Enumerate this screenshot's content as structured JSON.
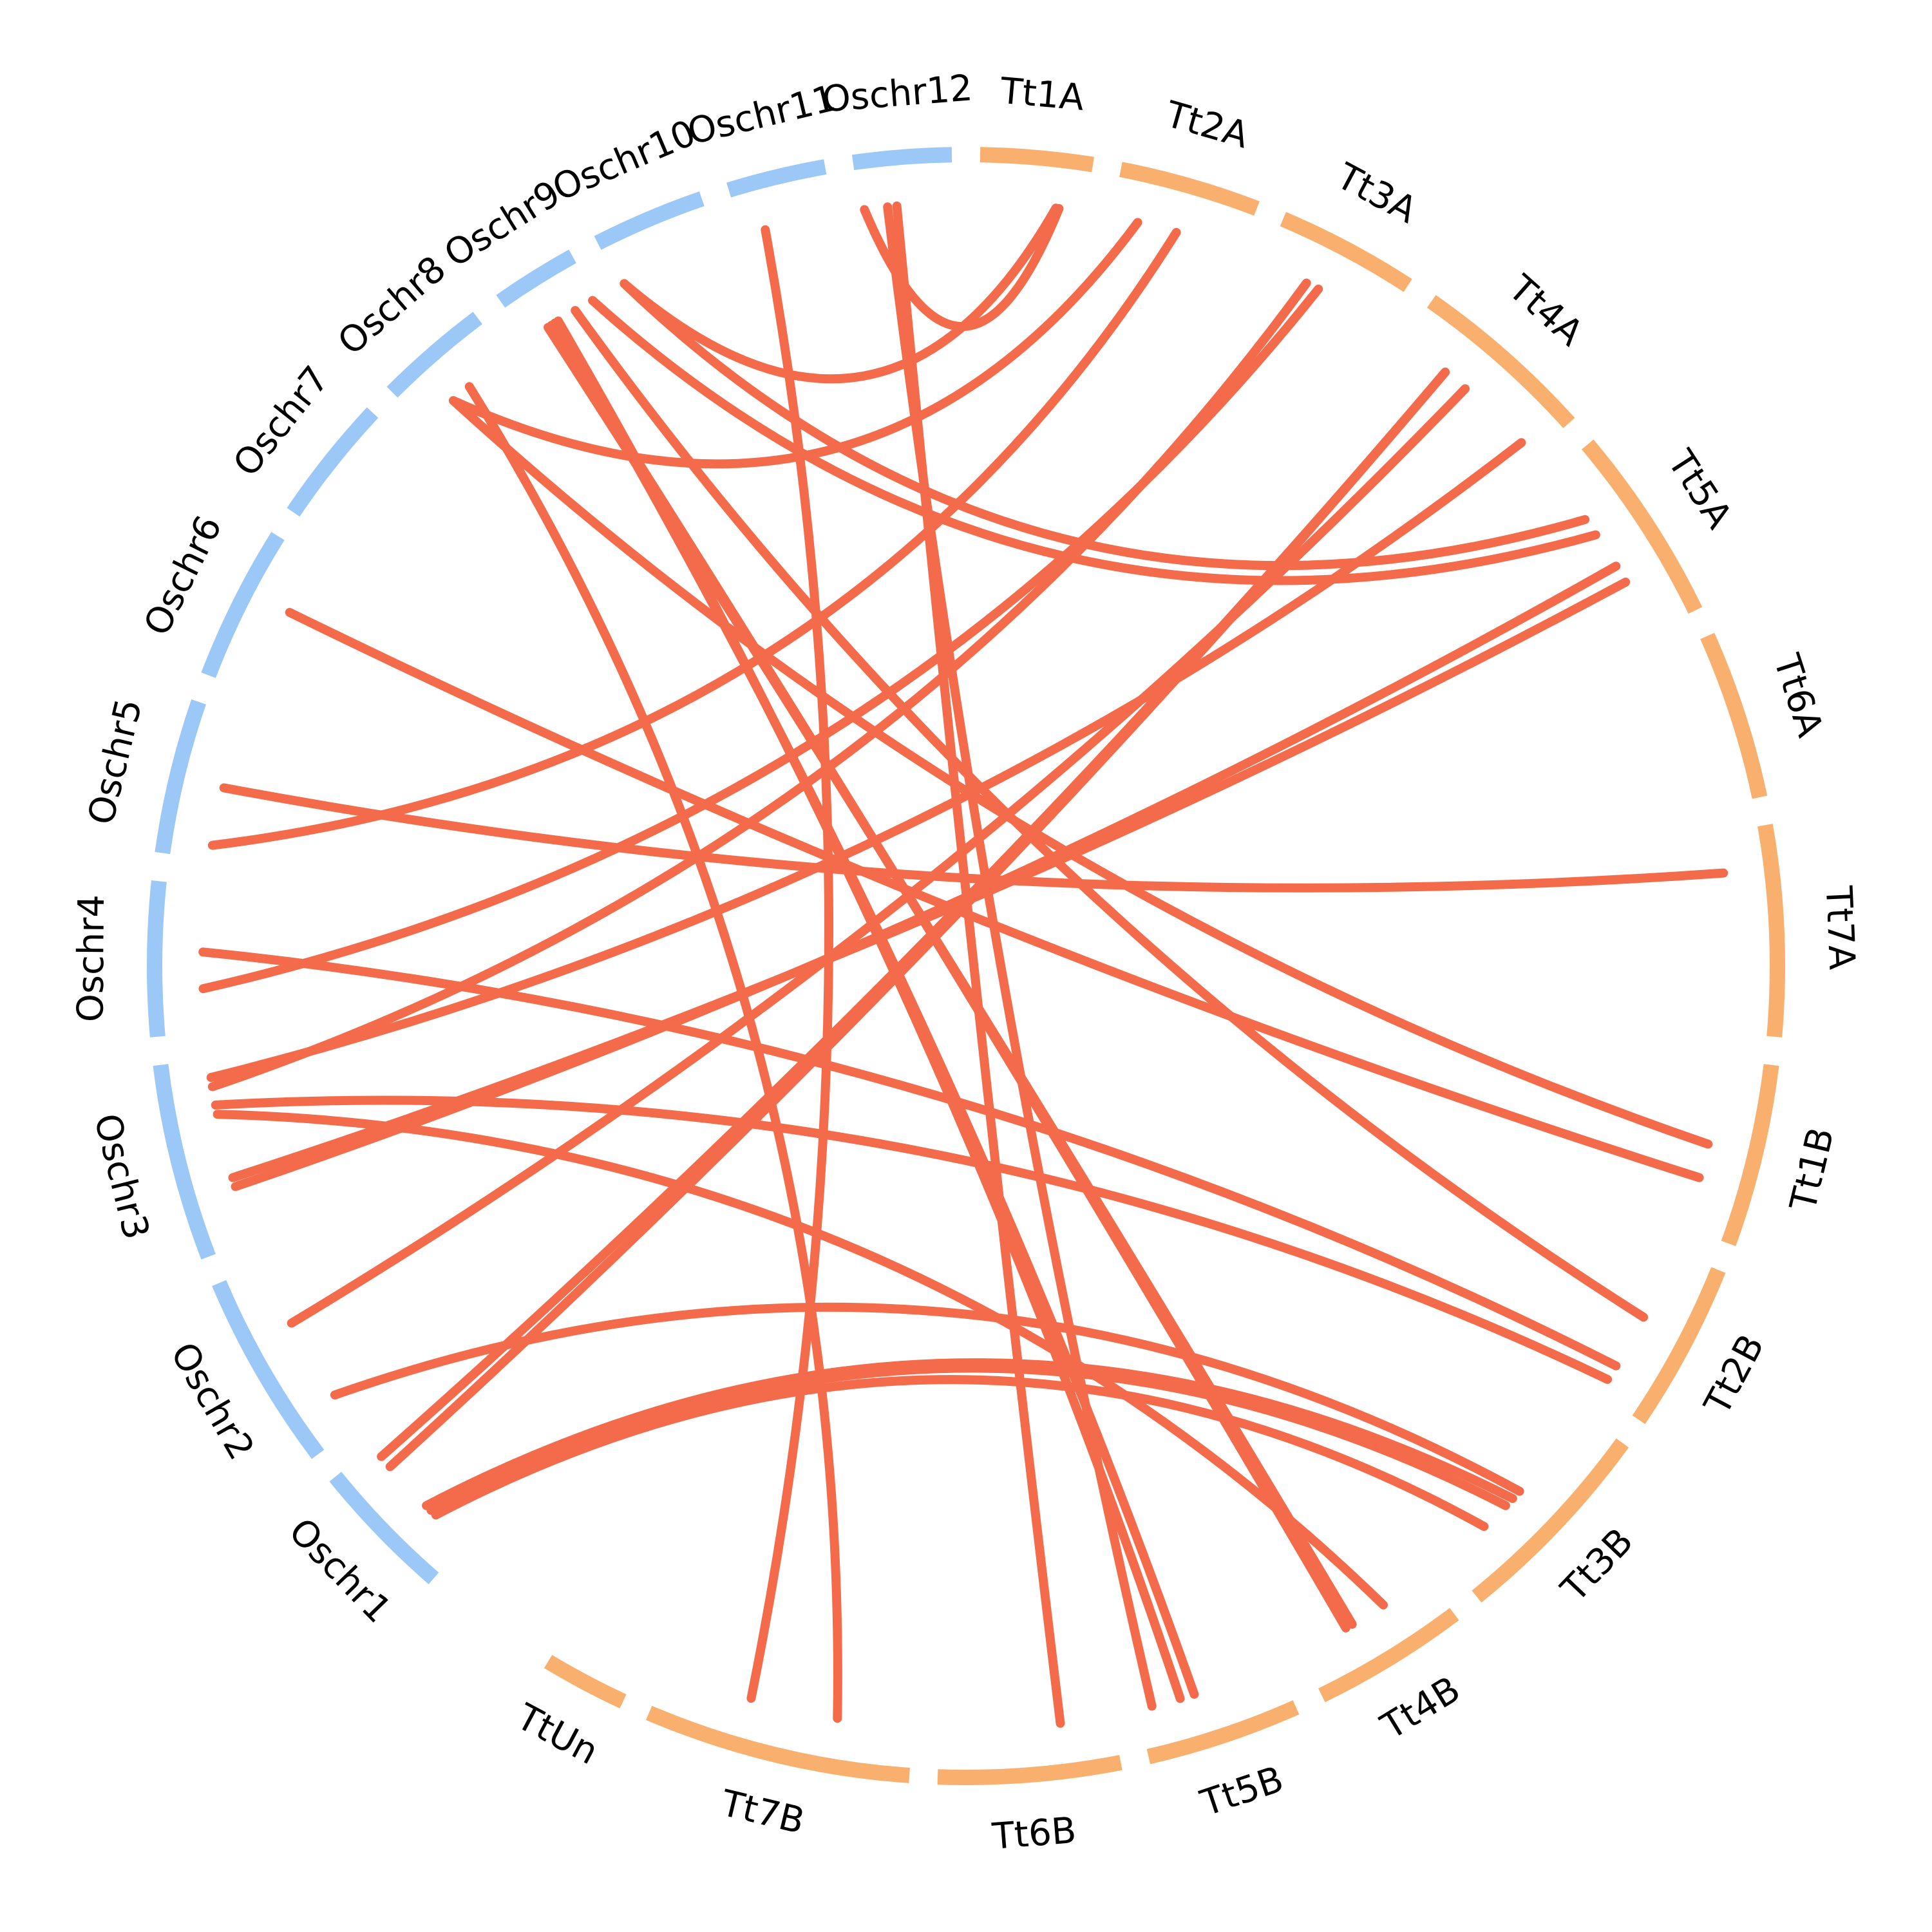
{
  "colors": {
    "rice": "#9cc8f8",
    "triticum": "#f9b06e",
    "link": "#f46b4b",
    "label": "#000000"
  },
  "chromosomes": [
    {
      "id": "Oschr1",
      "label": "Oschr1",
      "group": "rice"
    },
    {
      "id": "Oschr2",
      "label": "Oschr2",
      "group": "rice"
    },
    {
      "id": "Oschr3",
      "label": "Oschr3",
      "group": "rice"
    },
    {
      "id": "Oschr4",
      "label": "Oschr4",
      "group": "rice"
    },
    {
      "id": "Oschr5",
      "label": "Oschr5",
      "group": "rice"
    },
    {
      "id": "Oschr6",
      "label": "Oschr6",
      "group": "rice"
    },
    {
      "id": "Oschr7",
      "label": "Oschr7",
      "group": "rice"
    },
    {
      "id": "Oschr8",
      "label": "Oschr8",
      "group": "rice"
    },
    {
      "id": "Oschr9",
      "label": "Oschr9",
      "group": "rice"
    },
    {
      "id": "Oschr10",
      "label": "Oschr10",
      "group": "rice"
    },
    {
      "id": "Oschr11",
      "label": "Oschr11",
      "group": "rice"
    },
    {
      "id": "Oschr12",
      "label": "Oschr12",
      "group": "rice"
    },
    {
      "id": "Tt1A",
      "label": "Tt1A",
      "group": "triticum"
    },
    {
      "id": "Tt2A",
      "label": "Tt2A",
      "group": "triticum"
    },
    {
      "id": "Tt3A",
      "label": "Tt3A",
      "group": "triticum"
    },
    {
      "id": "Tt4A",
      "label": "Tt4A",
      "group": "triticum"
    },
    {
      "id": "Tt5A",
      "label": "Tt5A",
      "group": "triticum"
    },
    {
      "id": "Tt6A",
      "label": "Tt6A",
      "group": "triticum"
    },
    {
      "id": "Tt7A",
      "label": "Tt7A",
      "group": "triticum"
    },
    {
      "id": "Tt1B",
      "label": "Tt1B",
      "group": "triticum"
    },
    {
      "id": "Tt2B",
      "label": "Tt2B",
      "group": "triticum"
    },
    {
      "id": "Tt3B",
      "label": "Tt3B",
      "group": "triticum"
    },
    {
      "id": "Tt4B",
      "label": "Tt4B",
      "group": "triticum"
    },
    {
      "id": "Tt5B",
      "label": "Tt5B",
      "group": "triticum"
    },
    {
      "id": "Tt6B",
      "label": "Tt6B",
      "group": "triticum"
    },
    {
      "id": "Tt7B",
      "label": "Tt7B",
      "group": "triticum"
    },
    {
      "id": "TtUn",
      "label": "TtUn",
      "group": "triticum"
    }
  ],
  "links": [
    {
      "a": "Oschr12",
      "b": "Tt1A",
      "ta": 0.05,
      "tb": 0.75
    },
    {
      "a": "Oschr10",
      "b": "Tt1A",
      "ta": 0.05,
      "tb": 0.72
    },
    {
      "a": "Oschr8",
      "b": "Tt2A",
      "ta": 0.35,
      "tb": 0.2
    },
    {
      "a": "Oschr5",
      "b": "Tt2A",
      "ta": 0.1,
      "tb": 0.5
    },
    {
      "a": "Oschr4",
      "b": "Tt3A",
      "ta": 0.3,
      "tb": 0.45
    },
    {
      "a": "Oschr10",
      "b": "Tt5A",
      "ta": 0.05,
      "tb": 0.3
    },
    {
      "a": "Oschr9",
      "b": "Tt5A",
      "ta": 0.95,
      "tb": 0.4
    },
    {
      "a": "Oschr3",
      "b": "Tt5A",
      "ta": 0.3,
      "tb": 0.6
    },
    {
      "a": "Oschr3",
      "b": "Tt5A",
      "ta": 0.35,
      "tb": 0.7
    },
    {
      "a": "Oschr3",
      "b": "Tt4A",
      "ta": 0.9,
      "tb": 0.9
    },
    {
      "a": "Oschr2",
      "b": "Tt4A",
      "ta": 0.65,
      "tb": 0.45
    },
    {
      "a": "Oschr1",
      "b": "Tt4A",
      "ta": 0.9,
      "tb": 0.3
    },
    {
      "a": "Oschr3",
      "b": "Tt3A",
      "ta": 0.85,
      "tb": 0.35
    },
    {
      "a": "Oschr1",
      "b": "Tt4A",
      "ta": 0.8,
      "tb": 0.3
    },
    {
      "a": "Oschr8",
      "b": "Tt1B",
      "ta": 0.35,
      "tb": 0.5
    },
    {
      "a": "Oschr6",
      "b": "Tt1B",
      "ta": 0.6,
      "tb": 0.7
    },
    {
      "a": "Oschr5",
      "b": "Tt7A",
      "ta": 0.5,
      "tb": 0.2
    },
    {
      "a": "Oschr4",
      "b": "Tt2B",
      "ta": 0.55,
      "tb": 0.8
    },
    {
      "a": "Oschr3",
      "b": "Tt2B",
      "ta": 0.75,
      "tb": 0.9
    },
    {
      "a": "Oschr9",
      "b": "Tt2B",
      "ta": 0.7,
      "tb": 0.45
    },
    {
      "a": "Oschr9",
      "b": "Tt5B",
      "ta": 0.45,
      "tb": 0.7
    },
    {
      "a": "Oschr9",
      "b": "Tt5B",
      "ta": 0.4,
      "tb": 0.6
    },
    {
      "a": "Oschr9",
      "b": "Tt4B",
      "ta": 0.35,
      "tb": 0.65
    },
    {
      "a": "Oschr9",
      "b": "Tt4B",
      "ta": 0.3,
      "tb": 0.6
    },
    {
      "a": "Oschr3",
      "b": "Tt4B",
      "ta": 0.7,
      "tb": 0.35
    },
    {
      "a": "Oschr2",
      "b": "Tt3B",
      "ta": 0.2,
      "tb": 0.5
    },
    {
      "a": "Oschr1",
      "b": "Tt3B",
      "ta": 0.4,
      "tb": 0.55
    },
    {
      "a": "Oschr1",
      "b": "Tt3B",
      "ta": 0.35,
      "tb": 0.6
    },
    {
      "a": "Oschr1",
      "b": "Tt3B",
      "ta": 0.3,
      "tb": 0.75
    },
    {
      "a": "Oschr8",
      "b": "Tt7B",
      "ta": 0.55,
      "tb": 0.3
    },
    {
      "a": "Oschr11",
      "b": "Tt7B",
      "ta": 0.25,
      "tb": 0.65
    },
    {
      "a": "Oschr12",
      "b": "Tt6B",
      "ta": 0.4,
      "tb": 0.3
    },
    {
      "a": "Oschr12",
      "b": "Tt5B",
      "ta": 0.3,
      "tb": 0.9
    }
  ]
}
